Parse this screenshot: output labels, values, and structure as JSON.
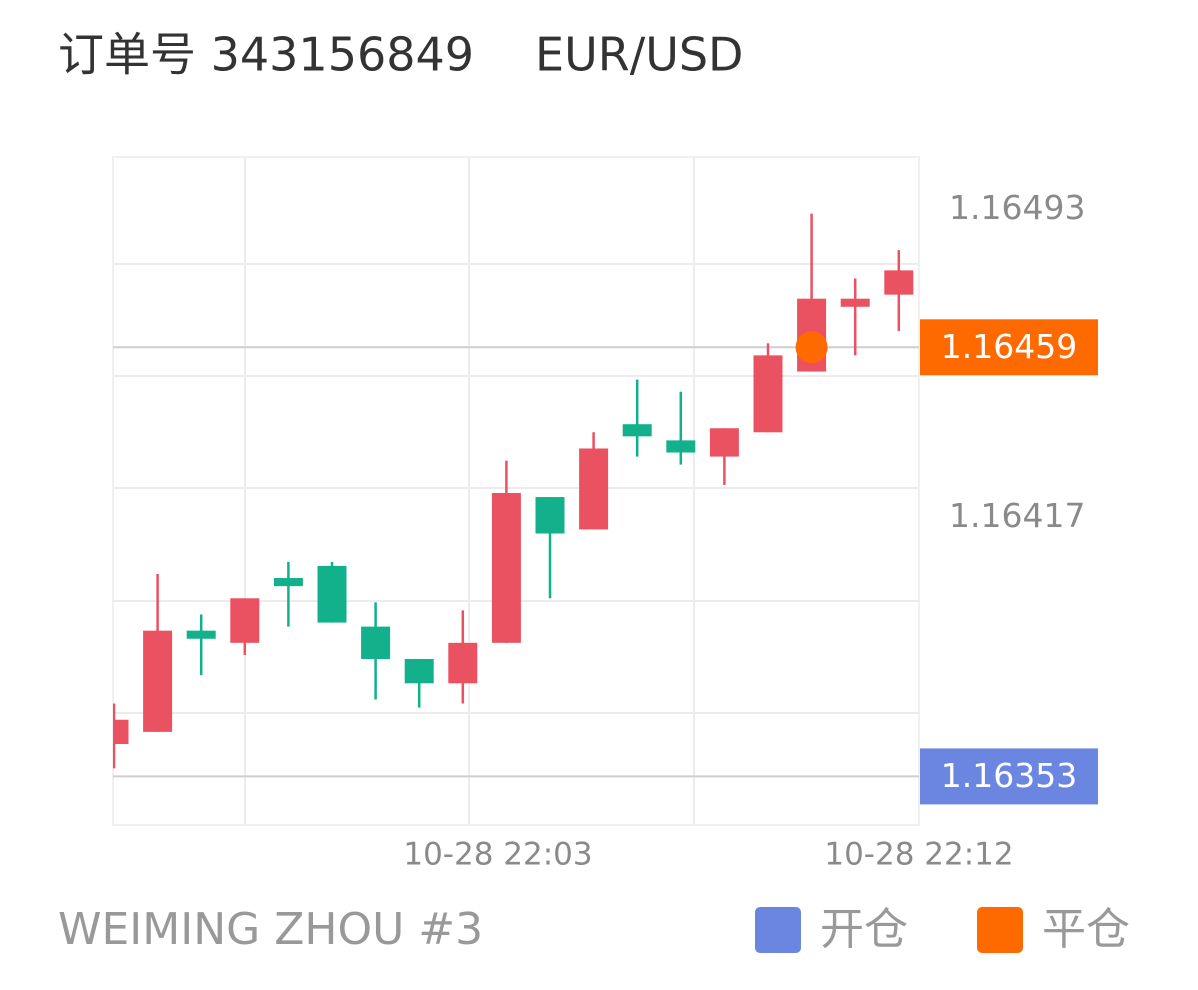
{
  "header": {
    "order": "订单号 343156849",
    "symbol": "EUR/USD"
  },
  "chart_data": {
    "type": "candlestick",
    "open": [
      1.16361,
      1.16364,
      1.16389,
      1.16386,
      1.16402,
      1.16405,
      1.1639,
      1.16382,
      1.16376,
      1.16386,
      1.16422,
      1.16414,
      1.1644,
      1.16436,
      1.16432,
      1.16438,
      1.16453,
      1.16469,
      1.16472
    ],
    "high": [
      1.16371,
      1.16403,
      1.16393,
      1.16397,
      1.16406,
      1.16406,
      1.16396,
      1.16382,
      1.16394,
      1.16431,
      1.16422,
      1.16438,
      1.16451,
      1.16448,
      1.16439,
      1.1646,
      1.16492,
      1.16476,
      1.16483
    ],
    "low": [
      1.16355,
      1.16364,
      1.16378,
      1.16383,
      1.1639,
      1.16391,
      1.16372,
      1.1637,
      1.16371,
      1.16386,
      1.16397,
      1.16414,
      1.16432,
      1.1643,
      1.16425,
      1.16438,
      1.16453,
      1.16457,
      1.16463
    ],
    "close": [
      1.16367,
      1.16389,
      1.16387,
      1.16397,
      1.164,
      1.16391,
      1.16382,
      1.16376,
      1.16386,
      1.16423,
      1.16413,
      1.16434,
      1.16437,
      1.16433,
      1.16439,
      1.16457,
      1.16471,
      1.16471,
      1.16478
    ],
    "up_color": "#ea5262",
    "down_color": "#13b08c",
    "ylim": [
      1.16341,
      1.16506
    ],
    "yticks": [
      1.16493,
      1.16417
    ],
    "x_tick_labels": [
      "10-28 22:03",
      "10-28 22:12"
    ],
    "markers": [
      {
        "name": "开仓",
        "value": 1.16353,
        "color": "#6b86e0"
      },
      {
        "name": "平仓",
        "value": 1.16459,
        "color": "#ff6a00"
      }
    ]
  },
  "footer": "WEIMING ZHOU #3"
}
